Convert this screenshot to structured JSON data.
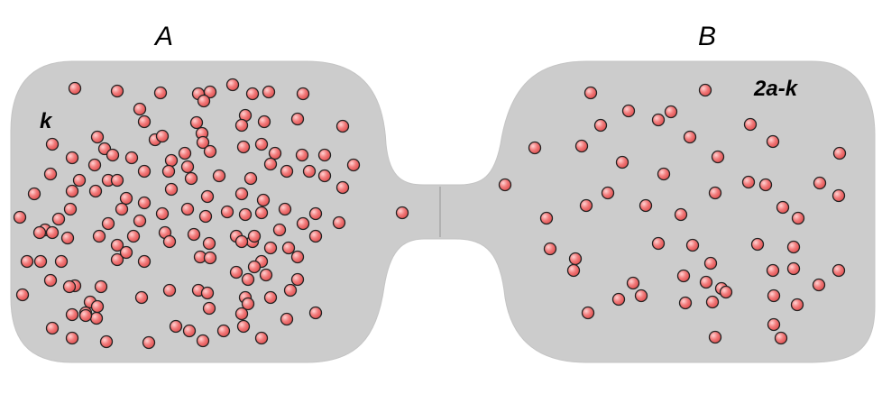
{
  "labels": {
    "left_chamber": "A",
    "right_chamber": "B",
    "left_count": "k",
    "right_count": "2a-k"
  },
  "colors": {
    "chamber_fill": "#cccccc",
    "chamber_edge": "#bdbdbd",
    "ball_fill": "#f26b6b",
    "ball_highlight": "#ffd2d2",
    "ball_outline": "#222222",
    "label": "#000000"
  }
}
